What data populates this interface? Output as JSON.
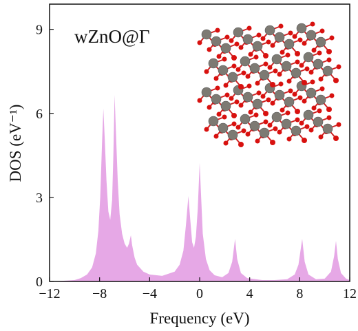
{
  "chart_data": {
    "type": "area",
    "annotation": "wZnO@Γ",
    "x_label": "Frequency (eV)",
    "y_label": "DOS (eV⁻¹)",
    "color": "#e6a8e6",
    "xlim": [
      -12,
      12
    ],
    "ylim": [
      0,
      9.9
    ],
    "xticks": [
      {
        "value": -12,
        "label": "−12"
      },
      {
        "value": -8,
        "label": "−8"
      },
      {
        "value": -4,
        "label": "−4"
      },
      0,
      4,
      8,
      12
    ],
    "yticks": [
      0,
      3,
      6,
      9
    ],
    "x": [
      -12,
      -11,
      -10,
      -9.5,
      -9,
      -8.6,
      -8.3,
      -8.1,
      -7.95,
      -7.8,
      -7.7,
      -7.6,
      -7.45,
      -7.3,
      -7.15,
      -7.0,
      -6.9,
      -6.8,
      -6.7,
      -6.55,
      -6.4,
      -6.2,
      -6.0,
      -5.8,
      -5.65,
      -5.5,
      -5.4,
      -5.2,
      -5.0,
      -4.5,
      -4,
      -3,
      -2,
      -1.6,
      -1.3,
      -1.1,
      -0.9,
      -0.75,
      -0.6,
      -0.45,
      -0.3,
      -0.15,
      0,
      0.1,
      0.25,
      0.5,
      0.8,
      1.2,
      1.8,
      2.3,
      2.6,
      2.83,
      3.0,
      3.3,
      3.8,
      5,
      6,
      7,
      7.6,
      7.9,
      8.2,
      8.4,
      8.7,
      9.3,
      10,
      10.5,
      10.75,
      10.9,
      11.05,
      11.3,
      11.7,
      12
    ],
    "values": [
      0.0,
      0.02,
      0.05,
      0.12,
      0.25,
      0.5,
      1.0,
      1.8,
      3.0,
      5.0,
      6.17,
      5.2,
      3.6,
      2.5,
      2.2,
      2.9,
      4.5,
      6.66,
      5.4,
      3.6,
      2.4,
      1.7,
      1.35,
      1.2,
      1.35,
      1.65,
      1.3,
      0.85,
      0.6,
      0.35,
      0.25,
      0.2,
      0.35,
      0.6,
      1.1,
      2.0,
      3.05,
      2.2,
      1.4,
      1.2,
      1.6,
      2.6,
      4.23,
      3.2,
      1.7,
      0.8,
      0.4,
      0.22,
      0.15,
      0.3,
      0.7,
      1.52,
      0.8,
      0.3,
      0.12,
      0.05,
      0.05,
      0.08,
      0.25,
      0.6,
      1.52,
      0.7,
      0.25,
      0.08,
      0.1,
      0.35,
      0.9,
      1.45,
      0.8,
      0.3,
      0.1,
      0.05
    ]
  }
}
